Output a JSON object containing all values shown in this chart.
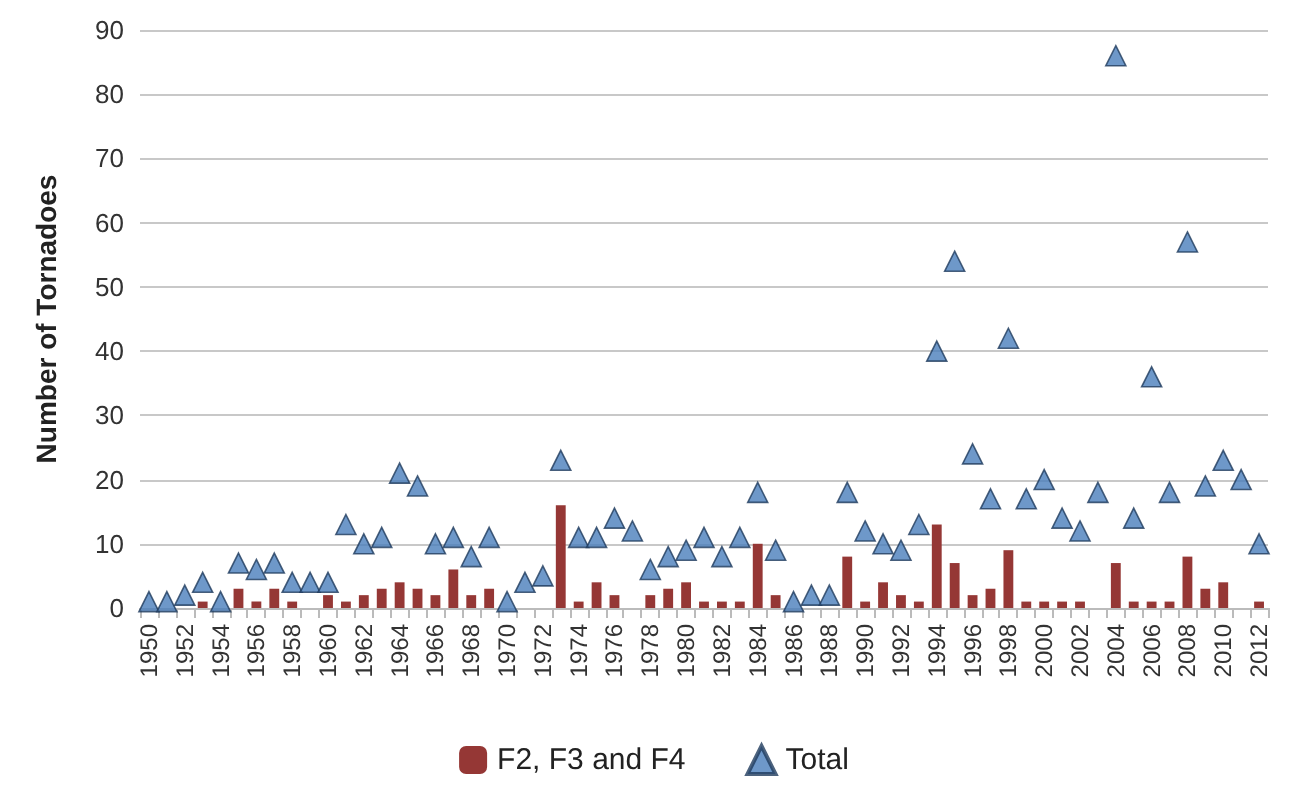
{
  "chart_data": {
    "type": "bar",
    "ylabel": "Number of Tornadoes",
    "categories": [
      "1950",
      null,
      "1952",
      null,
      "1954",
      null,
      "1956",
      null,
      "1958",
      null,
      "1960",
      null,
      "1962",
      null,
      "1964",
      null,
      "1966",
      null,
      "1968",
      null,
      "1970",
      null,
      "1972",
      null,
      "1974",
      null,
      "1976",
      null,
      "1978",
      null,
      "1980",
      null,
      "1982",
      null,
      "1984",
      null,
      "1986",
      null,
      "1988",
      null,
      "1990",
      null,
      "1992",
      null,
      "1994",
      null,
      "1996",
      null,
      "1998",
      null,
      "2000",
      null,
      "2002",
      null,
      "2004",
      null,
      "2006",
      null,
      "2008",
      null,
      "2010",
      null,
      "2012"
    ],
    "series": [
      {
        "name": "F2, F3 and F4",
        "color": "#953735",
        "values": [
          0,
          0,
          0,
          1,
          0,
          3,
          1,
          3,
          1,
          0,
          2,
          1,
          2,
          3,
          4,
          3,
          2,
          6,
          2,
          3,
          0,
          0,
          0,
          16,
          1,
          4,
          2,
          0,
          2,
          3,
          4,
          1,
          1,
          1,
          10,
          2,
          0,
          0,
          null,
          8,
          1,
          4,
          2,
          1,
          13,
          7,
          2,
          3,
          9,
          1,
          1,
          1,
          1,
          0,
          7,
          1,
          1,
          1,
          8,
          3,
          4,
          0,
          1
        ]
      },
      {
        "name": "Total",
        "type": "scatter",
        "marker": "triangle",
        "color": "#4a7ebb",
        "values": [
          1,
          1,
          2,
          4,
          1,
          7,
          6,
          7,
          4,
          4,
          4,
          13,
          10,
          11,
          21,
          19,
          10,
          11,
          8,
          11,
          1,
          4,
          5,
          23,
          11,
          11,
          14,
          12,
          6,
          8,
          9,
          11,
          8,
          11,
          18,
          9,
          1,
          2,
          2,
          18,
          12,
          10,
          9,
          13,
          40,
          54,
          24,
          17,
          42,
          17,
          20,
          14,
          12,
          18,
          86,
          14,
          36,
          18,
          57,
          19,
          23,
          20,
          10
        ]
      }
    ],
    "ylim": [
      0,
      90
    ],
    "yticks": [
      0,
      10,
      20,
      30,
      40,
      50,
      60,
      70,
      80,
      90
    ],
    "grid": "y",
    "legend": "bottom"
  }
}
